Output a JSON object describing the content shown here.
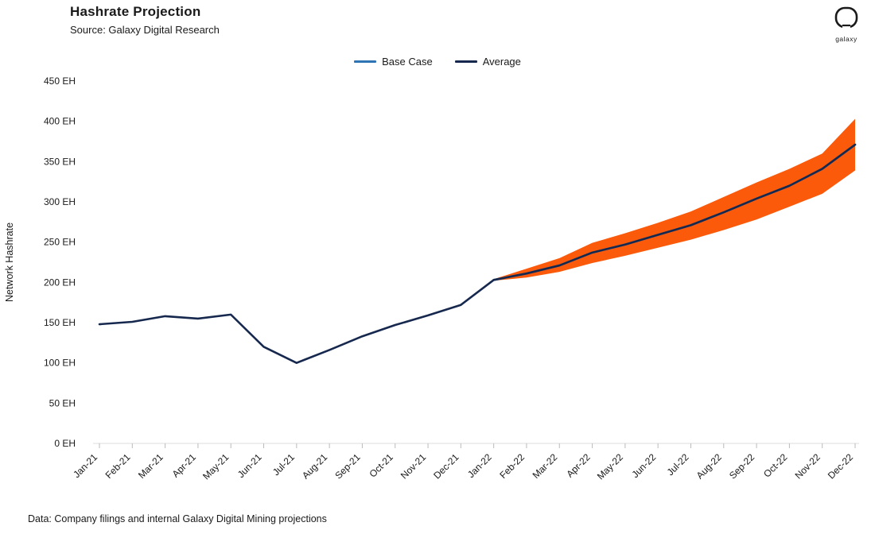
{
  "header": {
    "title": "Hashrate Projection",
    "subtitle": "Source: Galaxy Digital Research"
  },
  "logo": {
    "label": "galaxy"
  },
  "footer": {
    "note": "Data: Company filings and internal Galaxy Digital Mining projections"
  },
  "chart_data": {
    "type": "line",
    "title": "Hashrate Projection",
    "ylabel": "Network Hashrate",
    "ylim": [
      0,
      450
    ],
    "ytick_step": 50,
    "ytick_suffix": " EH",
    "grid": false,
    "legend_position": "top-center",
    "categories": [
      "Jan-21",
      "Feb-21",
      "Mar-21",
      "Apr-21",
      "May-21",
      "Jun-21",
      "Jul-21",
      "Aug-21",
      "Sep-21",
      "Oct-21",
      "Nov-21",
      "Dec-21",
      "Jan-22",
      "Feb-22",
      "Mar-22",
      "Apr-22",
      "May-22",
      "Jun-22",
      "Jul-22",
      "Aug-22",
      "Sep-22",
      "Oct-22",
      "Nov-22",
      "Dec-22"
    ],
    "series": [
      {
        "name": "Base Case",
        "color": "#2E74B5",
        "values": [
          null,
          null,
          null,
          null,
          null,
          null,
          null,
          null,
          null,
          null,
          null,
          null,
          203,
          211,
          221,
          237,
          247,
          259,
          271,
          287,
          304,
          320,
          341,
          371
        ]
      },
      {
        "name": "Average",
        "color": "#16284E",
        "values": [
          148,
          151,
          158,
          155,
          160,
          120,
          100,
          116,
          133,
          147,
          159,
          172,
          203,
          211,
          221,
          237,
          247,
          259,
          271,
          287,
          304,
          320,
          341,
          371
        ]
      }
    ],
    "band": {
      "name": "projection-range",
      "color": "#FA5A0A",
      "x_start_index": 12,
      "lower": [
        202,
        206,
        213,
        224,
        233,
        243,
        253,
        265,
        278,
        294,
        310,
        339
      ],
      "upper": [
        204,
        217,
        230,
        249,
        261,
        274,
        288,
        306,
        324,
        341,
        360,
        403
      ]
    }
  }
}
